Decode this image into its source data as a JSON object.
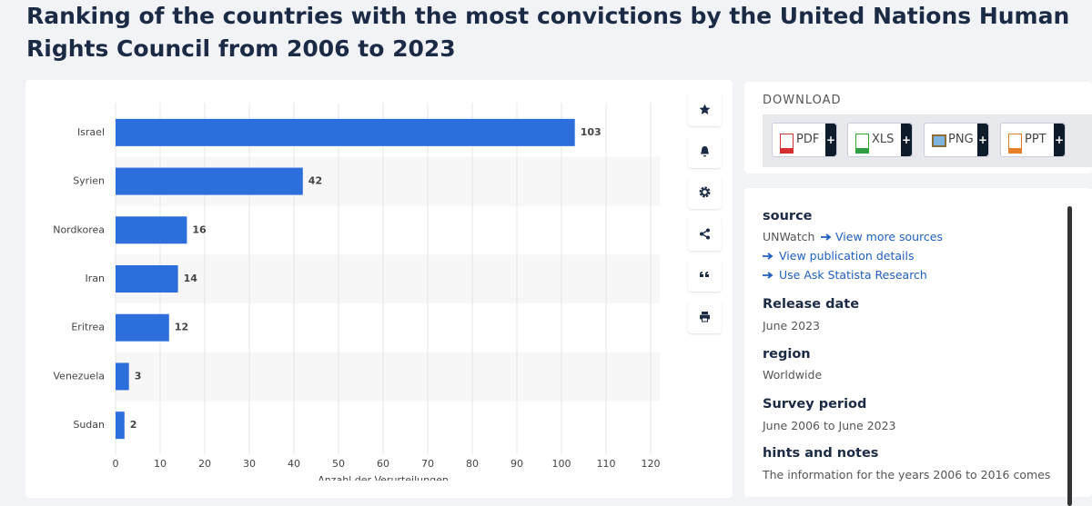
{
  "header": {
    "title": "Ranking of the countries with the most convictions by the United Nations Human Rights Council from 2006 to 2023"
  },
  "chart_data": {
    "type": "bar",
    "orientation": "horizontal",
    "categories": [
      "Israel",
      "Syrien",
      "Nordkorea",
      "Iran",
      "Eritrea",
      "Venezuela",
      "Sudan"
    ],
    "values": [
      103,
      42,
      16,
      14,
      12,
      3,
      2
    ],
    "color": "#2c6fdc",
    "xlim": [
      0,
      120
    ],
    "xticks": [
      0,
      10,
      20,
      30,
      40,
      50,
      60,
      70,
      80,
      90,
      100,
      110,
      120
    ],
    "x_label": "Anzahl der Verurteilungen",
    "grid": true
  },
  "download": {
    "label": "DOWNLOAD",
    "plus": "+",
    "buttons": [
      "PDF",
      "XLS",
      "PNG",
      "PPT"
    ]
  },
  "info": {
    "source": {
      "label": "source",
      "name": "UNWatch",
      "links": [
        "View more sources",
        "View publication details",
        "Use Ask Statista Research"
      ]
    },
    "release_date": {
      "label": "Release date",
      "value": "June 2023"
    },
    "region": {
      "label": "region",
      "value": "Worldwide"
    },
    "survey_period": {
      "label": "Survey period",
      "value": "June 2006 to June 2023"
    },
    "hints": {
      "label": "hints and notes",
      "value": "The information for the years 2006 to 2016 comes"
    }
  }
}
